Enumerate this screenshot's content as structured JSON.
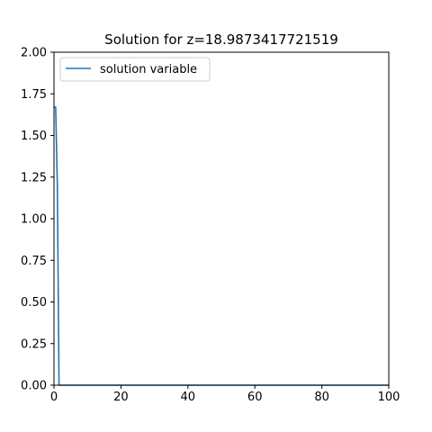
{
  "chart_data": {
    "type": "line",
    "title": "Solution for z=18.9873417721519",
    "xlabel": "",
    "ylabel": "",
    "xlim": [
      0,
      100
    ],
    "ylim": [
      0,
      2.0
    ],
    "x_ticks": [
      0,
      20,
      40,
      60,
      80,
      100
    ],
    "x_tick_labels": [
      "0",
      "20",
      "40",
      "60",
      "80",
      "100"
    ],
    "y_ticks": [
      0.0,
      0.25,
      0.5,
      0.75,
      1.0,
      1.25,
      1.5,
      1.75,
      2.0
    ],
    "y_tick_labels": [
      "0.00",
      "0.25",
      "0.50",
      "0.75",
      "1.00",
      "1.25",
      "1.50",
      "1.75",
      "2.00"
    ],
    "grid": false,
    "legend_position": "top-left",
    "series": [
      {
        "name": "solution variable",
        "color": "#1f77b4",
        "x": [
          0,
          0.5,
          1.0,
          1.5,
          2.0,
          5,
          10,
          20,
          40,
          60,
          80,
          100
        ],
        "y": [
          1.67,
          1.67,
          1.2,
          0.0,
          0.0,
          0.0,
          0.0,
          0.0,
          0.0,
          0.0,
          0.0,
          0.0
        ]
      }
    ]
  }
}
